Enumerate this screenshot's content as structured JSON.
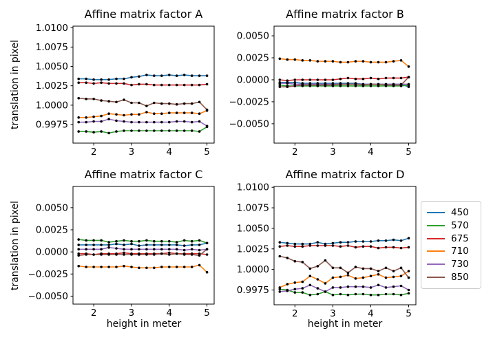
{
  "figure": {
    "ylabel": "translation in pixel",
    "xlabel": "height in meter",
    "legend": {
      "entries": [
        {
          "label": "450",
          "color": "#1f77b4"
        },
        {
          "label": "570",
          "color": "#2ca02c"
        },
        {
          "label": "675",
          "color": "#d62728"
        },
        {
          "label": "710",
          "color": "#ff7f0e"
        },
        {
          "label": "730",
          "color": "#9467bd"
        },
        {
          "label": "850",
          "color": "#8c564b"
        }
      ]
    },
    "colors": {
      "axis": "#000000",
      "marker": "#000000",
      "legend_border": "#cccccc"
    }
  },
  "chart_data": [
    {
      "id": "A",
      "type": "line",
      "title": "Affine matrix factor A",
      "xlabel": "",
      "ylabel": "translation in pixel",
      "x": [
        1.6,
        1.8,
        2.0,
        2.2,
        2.4,
        2.6,
        2.8,
        3.0,
        3.2,
        3.4,
        3.6,
        3.8,
        4.0,
        4.2,
        4.4,
        4.6,
        4.8,
        5.0
      ],
      "xlim": [
        1.45,
        5.19
      ],
      "ylim": [
        0.9951,
        1.0102
      ],
      "xticks": [
        2,
        3,
        4,
        5
      ],
      "yticks": [
        0.9975,
        1.0,
        1.0025,
        1.005,
        1.0075,
        1.01
      ],
      "grid": false,
      "series": [
        {
          "name": "450",
          "color": "#1f77b4",
          "values": [
            1.0034,
            1.0034,
            1.0033,
            1.0033,
            1.0033,
            1.0034,
            1.0034,
            1.0036,
            1.0037,
            1.0039,
            1.0038,
            1.0038,
            1.0039,
            1.0038,
            1.0039,
            1.0038,
            1.0038,
            1.0038
          ]
        },
        {
          "name": "570",
          "color": "#2ca02c",
          "values": [
            0.9966,
            0.9966,
            0.9965,
            0.9966,
            0.9964,
            0.9966,
            0.9967,
            0.9967,
            0.9967,
            0.9967,
            0.9967,
            0.9967,
            0.9967,
            0.9967,
            0.9967,
            0.9967,
            0.9966,
            0.9972
          ]
        },
        {
          "name": "675",
          "color": "#d62728",
          "values": [
            1.0029,
            1.0029,
            1.0028,
            1.0029,
            1.0028,
            1.0028,
            1.0028,
            1.0026,
            1.0027,
            1.0027,
            1.0026,
            1.0026,
            1.0026,
            1.0026,
            1.0026,
            1.0026,
            1.0026,
            1.0027
          ]
        },
        {
          "name": "710",
          "color": "#ff7f0e",
          "values": [
            0.9984,
            0.9984,
            0.9985,
            0.9986,
            0.9989,
            0.9988,
            0.9987,
            0.9988,
            0.9988,
            0.9991,
            0.9989,
            0.9989,
            0.999,
            0.999,
            0.999,
            0.999,
            0.9989,
            0.9993
          ]
        },
        {
          "name": "730",
          "color": "#9467bd",
          "values": [
            0.9978,
            0.9978,
            0.9979,
            0.9979,
            0.9982,
            0.998,
            0.9979,
            0.9978,
            0.9978,
            0.9978,
            0.9978,
            0.9978,
            0.9978,
            0.9979,
            0.9979,
            0.9978,
            0.9979,
            0.9973
          ]
        },
        {
          "name": "850",
          "color": "#8c564b",
          "values": [
            1.0009,
            1.0008,
            1.0008,
            1.0006,
            1.0005,
            1.0004,
            1.0007,
            1.0003,
            1.0003,
            0.9999,
            1.0003,
            1.0002,
            1.0002,
            1.0001,
            1.0002,
            1.0002,
            1.0004,
            0.9994
          ]
        }
      ]
    },
    {
      "id": "B",
      "type": "line",
      "title": "Affine matrix factor B",
      "xlabel": "",
      "ylabel": "",
      "x": [
        1.6,
        1.8,
        2.0,
        2.2,
        2.4,
        2.6,
        2.8,
        3.0,
        3.2,
        3.4,
        3.6,
        3.8,
        4.0,
        4.2,
        4.4,
        4.6,
        4.8,
        5.0
      ],
      "xlim": [
        1.45,
        5.19
      ],
      "ylim": [
        -0.0072,
        0.0061
      ],
      "xticks": [
        2,
        3,
        4,
        5
      ],
      "yticks": [
        -0.005,
        -0.0025,
        0.0,
        0.0025,
        0.005
      ],
      "grid": false,
      "series": [
        {
          "name": "450",
          "color": "#1f77b4",
          "values": [
            -0.0003,
            -0.0003,
            -0.0003,
            -0.0004,
            -0.0004,
            -0.0004,
            -0.0004,
            -0.0004,
            -0.0004,
            -0.0004,
            -0.0004,
            -0.0005,
            -0.0005,
            -0.0005,
            -0.0005,
            -0.0005,
            -0.0005,
            -0.0008
          ]
        },
        {
          "name": "570",
          "color": "#2ca02c",
          "values": [
            -0.0006,
            -0.0007,
            -0.0007,
            -0.0007,
            -0.0007,
            -0.0007,
            -0.0007,
            -0.0007,
            -0.0007,
            -0.0007,
            -0.0007,
            -0.0007,
            -0.0007,
            -0.0007,
            -0.0007,
            -0.0007,
            -0.0007,
            -0.0006
          ]
        },
        {
          "name": "675",
          "color": "#d62728",
          "values": [
            0.0,
            -0.0001,
            0.0,
            0.0,
            0.0,
            0.0,
            0.0,
            0.0,
            0.0001,
            0.0002,
            0.0001,
            0.0001,
            0.0002,
            0.0001,
            0.0002,
            0.0002,
            0.0002,
            0.0003
          ]
        },
        {
          "name": "710",
          "color": "#ff7f0e",
          "values": [
            0.0024,
            0.0023,
            0.0023,
            0.0022,
            0.0022,
            0.0021,
            0.0021,
            0.0021,
            0.002,
            0.002,
            0.0021,
            0.0021,
            0.002,
            0.002,
            0.002,
            0.0021,
            0.0022,
            0.0015
          ]
        },
        {
          "name": "730",
          "color": "#9467bd",
          "values": [
            -0.0004,
            -0.0004,
            -0.0005,
            -0.0005,
            -0.0005,
            -0.0005,
            -0.0005,
            -0.0005,
            -0.0005,
            -0.0005,
            -0.0005,
            -0.0005,
            -0.0005,
            -0.0005,
            -0.0005,
            -0.0005,
            -0.0005,
            -0.0005
          ]
        },
        {
          "name": "850",
          "color": "#8c564b",
          "values": [
            -0.0008,
            -0.0008,
            -0.0007,
            -0.0006,
            -0.0006,
            -0.0006,
            -0.0006,
            -0.0006,
            -0.0005,
            -0.0005,
            -0.0005,
            -0.0006,
            -0.0005,
            -0.0005,
            -0.0006,
            -0.0006,
            -0.0006,
            0.0003
          ]
        }
      ]
    },
    {
      "id": "C",
      "type": "line",
      "title": "Affine matrix factor C",
      "xlabel": "height in meter",
      "ylabel": "translation in pixel",
      "x": [
        1.6,
        1.8,
        2.0,
        2.2,
        2.4,
        2.6,
        2.8,
        3.0,
        3.2,
        3.4,
        3.6,
        3.8,
        4.0,
        4.2,
        4.4,
        4.6,
        4.8,
        5.0
      ],
      "xlim": [
        1.45,
        5.19
      ],
      "ylim": [
        -0.0059,
        0.0074
      ],
      "xticks": [
        2,
        3,
        4,
        5
      ],
      "yticks": [
        -0.005,
        -0.0025,
        0.0,
        0.0025,
        0.005
      ],
      "grid": false,
      "series": [
        {
          "name": "450",
          "color": "#1f77b4",
          "values": [
            0.0008,
            0.0008,
            0.0008,
            0.0008,
            0.0008,
            0.0009,
            0.0008,
            0.0009,
            0.0007,
            0.0008,
            0.0008,
            0.0008,
            0.0008,
            0.0008,
            0.0007,
            0.0008,
            0.0008,
            0.001
          ]
        },
        {
          "name": "570",
          "color": "#2ca02c",
          "values": [
            0.0014,
            0.0013,
            0.0013,
            0.0013,
            0.0011,
            0.0012,
            0.0013,
            0.0012,
            0.0012,
            0.0013,
            0.0012,
            0.0012,
            0.0012,
            0.0011,
            0.0013,
            0.0012,
            0.0013,
            0.001
          ]
        },
        {
          "name": "675",
          "color": "#d62728",
          "values": [
            -0.0002,
            -0.0002,
            -0.0003,
            -0.0002,
            -0.0002,
            -0.0002,
            -0.0001,
            -0.0002,
            -0.0002,
            -0.0002,
            -0.0002,
            -0.0002,
            -0.0001,
            -0.0002,
            -0.0002,
            -0.0002,
            -0.0002,
            -0.0003
          ]
        },
        {
          "name": "710",
          "color": "#ff7f0e",
          "values": [
            -0.0016,
            -0.0017,
            -0.0017,
            -0.0017,
            -0.0017,
            -0.0017,
            -0.0016,
            -0.0017,
            -0.0018,
            -0.0018,
            -0.0018,
            -0.0017,
            -0.0017,
            -0.0017,
            -0.0017,
            -0.0017,
            -0.0015,
            -0.0023
          ]
        },
        {
          "name": "730",
          "color": "#9467bd",
          "values": [
            0.0003,
            0.0003,
            0.0003,
            0.0003,
            0.0005,
            0.0004,
            0.0003,
            0.0003,
            0.0003,
            0.0003,
            0.0003,
            0.0003,
            0.0003,
            0.0003,
            0.0002,
            0.0003,
            0.0002,
            0.0003
          ]
        },
        {
          "name": "850",
          "color": "#8c564b",
          "values": [
            -0.0004,
            -0.0003,
            -0.0003,
            -0.0003,
            -0.0003,
            -0.0003,
            -0.0003,
            -0.0003,
            -0.0003,
            -0.0003,
            -0.0003,
            -0.0002,
            -0.0003,
            -0.0002,
            -0.0003,
            -0.0003,
            -0.0004,
            0.0003
          ]
        }
      ]
    },
    {
      "id": "D",
      "type": "line",
      "title": "Affine matrix factor D",
      "xlabel": "height in meter",
      "ylabel": "",
      "x": [
        1.6,
        1.8,
        2.0,
        2.2,
        2.4,
        2.6,
        2.8,
        3.0,
        3.2,
        3.4,
        3.6,
        3.8,
        4.0,
        4.2,
        4.4,
        4.6,
        4.8,
        5.0
      ],
      "xlim": [
        1.45,
        5.19
      ],
      "ylim": [
        0.9957,
        1.0101
      ],
      "xticks": [
        2,
        3,
        4,
        5
      ],
      "yticks": [
        0.9975,
        1.0,
        1.0025,
        1.005,
        1.0075,
        1.01
      ],
      "grid": false,
      "series": [
        {
          "name": "450",
          "color": "#1f77b4",
          "values": [
            1.0033,
            1.0032,
            1.0031,
            1.0031,
            1.0031,
            1.0033,
            1.0031,
            1.0032,
            1.0033,
            1.0033,
            1.0034,
            1.0034,
            1.0034,
            1.0035,
            1.0035,
            1.0036,
            1.0035,
            1.0038
          ]
        },
        {
          "name": "570",
          "color": "#2ca02c",
          "values": [
            0.9976,
            0.9975,
            0.9972,
            0.9972,
            0.9969,
            0.997,
            0.9973,
            0.9969,
            0.997,
            0.9969,
            0.997,
            0.997,
            0.9969,
            0.9969,
            0.997,
            0.997,
            0.9969,
            0.9971
          ]
        },
        {
          "name": "675",
          "color": "#d62728",
          "values": [
            1.0028,
            1.0029,
            1.0028,
            1.0028,
            1.0029,
            1.0029,
            1.0029,
            1.0029,
            1.0028,
            1.0029,
            1.0027,
            1.0028,
            1.0028,
            1.0026,
            1.0027,
            1.0027,
            1.0026,
            1.0027
          ]
        },
        {
          "name": "710",
          "color": "#ff7f0e",
          "values": [
            0.9978,
            0.9982,
            0.9984,
            0.9985,
            0.9992,
            0.9988,
            0.9983,
            0.999,
            0.9991,
            0.9993,
            0.9989,
            0.999,
            0.9992,
            0.9994,
            0.999,
            0.9991,
            0.9992,
            0.9998
          ]
        },
        {
          "name": "730",
          "color": "#9467bd",
          "values": [
            0.9973,
            0.9974,
            0.9976,
            0.9977,
            0.9981,
            0.9977,
            0.9973,
            0.9978,
            0.9978,
            0.9979,
            0.9979,
            0.9979,
            0.9978,
            0.9981,
            0.9978,
            0.9979,
            0.998,
            0.9975
          ]
        },
        {
          "name": "850",
          "color": "#8c564b",
          "values": [
            1.0016,
            1.0014,
            1.001,
            1.0009,
            1.0001,
            1.0004,
            1.0011,
            1.0002,
            1.0002,
            0.9996,
            1.0003,
            1.0001,
            1.0001,
            0.9998,
            1.0002,
            0.9998,
            1.0002,
            0.999
          ]
        }
      ]
    }
  ]
}
